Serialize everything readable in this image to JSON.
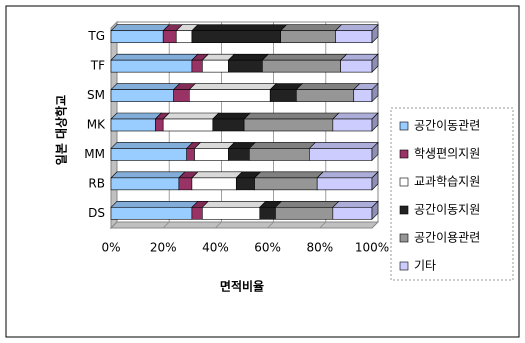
{
  "chart_data": {
    "type": "bar3d-stacked-horizontal",
    "y_label": "일본 대상학교",
    "x_label": "면적비율",
    "categories": [
      "DS",
      "RB",
      "MM",
      "MK",
      "SM",
      "TF",
      "TG"
    ],
    "series": [
      {
        "name": "공간이동관련",
        "color": "#99ccff",
        "values": [
          31,
          26,
          29,
          17,
          24,
          31,
          20
        ]
      },
      {
        "name": "학생편의지원",
        "color": "#993366",
        "values": [
          4,
          5,
          3,
          3,
          6,
          4,
          5
        ]
      },
      {
        "name": "교과학습지원",
        "color": "#ffffff",
        "values": [
          22,
          17,
          13,
          19,
          31,
          10,
          6
        ]
      },
      {
        "name": "공간이동지원",
        "color": "#222222",
        "values": [
          6,
          7,
          8,
          12,
          10,
          13,
          34
        ]
      },
      {
        "name": "공간이용관련",
        "color": "#969696",
        "values": [
          22,
          24,
          23,
          34,
          22,
          30,
          21
        ]
      },
      {
        "name": "기타",
        "color": "#ccccff",
        "values": [
          15,
          21,
          24,
          15,
          7,
          12,
          14
        ]
      }
    ],
    "xlim": [
      0,
      100
    ],
    "xticks": [
      {
        "value": 0,
        "label": "0%"
      },
      {
        "value": 20,
        "label": "20%"
      },
      {
        "value": 40,
        "label": "40%"
      },
      {
        "value": 60,
        "label": "60%"
      },
      {
        "value": 80,
        "label": "80%"
      },
      {
        "value": 100,
        "label": "100%"
      }
    ],
    "grid": true,
    "legend": "right"
  }
}
